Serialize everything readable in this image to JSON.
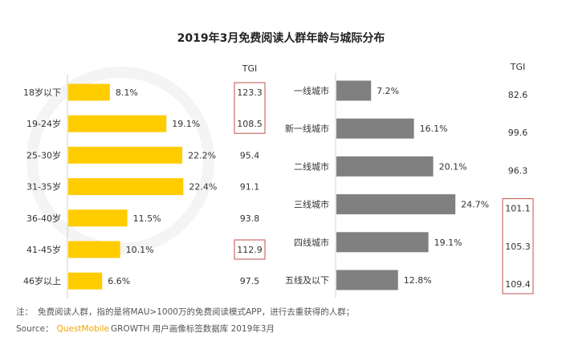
{
  "chart_data": [
    {
      "type": "bar",
      "orientation": "horizontal",
      "title": "2019年3月免费阅读人群年龄与城际分布",
      "categories": [
        "18岁以下",
        "19-24岁",
        "25-30岁",
        "31-35岁",
        "36-40岁",
        "41-45岁",
        "46岁以上"
      ],
      "values": [
        8.1,
        19.1,
        22.2,
        22.4,
        11.5,
        10.1,
        6.6
      ],
      "value_labels": [
        "8.1%",
        "19.1%",
        "22.2%",
        "22.4%",
        "11.5%",
        "10.1%",
        "6.6%"
      ],
      "tgi_header": "TGI",
      "tgi": [
        "123.3",
        "108.5",
        "95.4",
        "91.1",
        "93.8",
        "112.9",
        "97.5"
      ],
      "tgi_highlight_groups": [
        [
          0,
          1
        ],
        [
          5
        ]
      ],
      "color": "#FFCC00",
      "grid": false
    },
    {
      "type": "bar",
      "orientation": "horizontal",
      "categories": [
        "一线城市",
        "新一线城市",
        "二线城市",
        "三线城市",
        "四线城市",
        "五线及以下"
      ],
      "values": [
        7.2,
        16.1,
        20.1,
        24.7,
        19.1,
        12.8
      ],
      "value_labels": [
        "7.2%",
        "16.1%",
        "20.1%",
        "24.7%",
        "19.1%",
        "12.8%"
      ],
      "tgi_header": "TGI",
      "tgi": [
        "82.6",
        "99.6",
        "96.3",
        "101.1",
        "105.3",
        "109.4"
      ],
      "tgi_highlight_groups": [
        [
          3,
          4,
          5
        ]
      ],
      "color": "#808080",
      "grid": false
    }
  ],
  "highlight_color": "#C0504D",
  "title": "2019年3月免费阅读人群年龄与城际分布",
  "watermark": "QUESTMOBILE",
  "footer": {
    "note_label": "注：",
    "note_text": "免费阅读人群，指的是将MAU>1000万的免费阅读模式APP，进行去重获得的人群；",
    "source_label": "Source：",
    "source_brand": "QuestMobile",
    "source_text": "GROWTH 用户画像标签数据库 2019年3月",
    "brand_color": "#F0A500"
  }
}
